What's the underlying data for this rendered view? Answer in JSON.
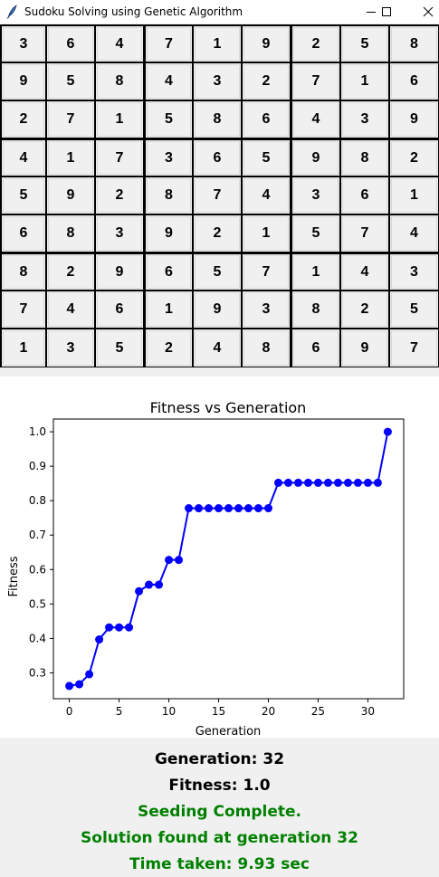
{
  "window": {
    "title": "Sudoku Solving using Genetic Algorithm",
    "icon": "feather-icon",
    "controls": [
      "minimize-icon",
      "maximize-icon",
      "close-icon"
    ]
  },
  "board": [
    [
      3,
      6,
      4,
      7,
      1,
      9,
      2,
      5,
      8
    ],
    [
      9,
      5,
      8,
      4,
      3,
      2,
      7,
      1,
      6
    ],
    [
      2,
      7,
      1,
      5,
      8,
      6,
      4,
      3,
      9
    ],
    [
      4,
      1,
      7,
      3,
      6,
      5,
      9,
      8,
      2
    ],
    [
      5,
      9,
      2,
      8,
      7,
      4,
      3,
      6,
      1
    ],
    [
      6,
      8,
      3,
      9,
      2,
      1,
      5,
      7,
      4
    ],
    [
      8,
      2,
      9,
      6,
      5,
      7,
      1,
      4,
      3
    ],
    [
      7,
      4,
      6,
      1,
      9,
      3,
      8,
      2,
      5
    ],
    [
      1,
      3,
      5,
      2,
      4,
      8,
      6,
      9,
      7
    ]
  ],
  "chart_data": {
    "type": "line",
    "title": "Fitness vs Generation",
    "xlabel": "Generation",
    "ylabel": "Fitness",
    "xlim": [
      -1.6,
      33.6
    ],
    "ylim": [
      0.225,
      1.037
    ],
    "x_ticks": [
      0,
      5,
      10,
      15,
      20,
      25,
      30
    ],
    "y_ticks": [
      0.3,
      0.4,
      0.5,
      0.6,
      0.7,
      0.8,
      0.9,
      1.0
    ],
    "color": "#0000ff",
    "grid": false,
    "x": [
      0,
      1,
      2,
      3,
      4,
      5,
      6,
      7,
      8,
      9,
      10,
      11,
      12,
      13,
      14,
      15,
      16,
      17,
      18,
      19,
      20,
      21,
      22,
      23,
      24,
      25,
      26,
      27,
      28,
      29,
      30,
      31,
      32
    ],
    "y": [
      0.262,
      0.267,
      0.296,
      0.397,
      0.432,
      0.432,
      0.432,
      0.537,
      0.556,
      0.556,
      0.628,
      0.628,
      0.778,
      0.778,
      0.778,
      0.778,
      0.778,
      0.778,
      0.778,
      0.778,
      0.778,
      0.852,
      0.852,
      0.852,
      0.852,
      0.852,
      0.852,
      0.852,
      0.852,
      0.852,
      0.852,
      0.852,
      1.0
    ]
  },
  "status": {
    "generation": "Generation: 32",
    "fitness": "Fitness: 1.0",
    "seeding": "Seeding Complete.",
    "solution": "Solution found at generation 32",
    "time": "Time taken: 9.93 sec",
    "primary_color": "#000000",
    "success_color": "#008000"
  }
}
